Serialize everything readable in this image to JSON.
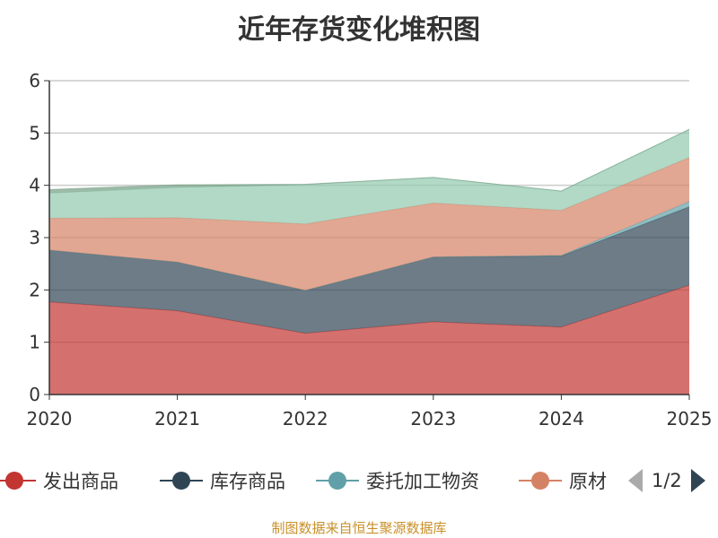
{
  "chart_data": {
    "type": "area",
    "stacked": true,
    "title": "近年存货变化堆积图",
    "categories": [
      "2020",
      "2021",
      "2022",
      "2023",
      "2024",
      "2025"
    ],
    "ylim": [
      0,
      6
    ],
    "yticks": [
      "0",
      "1",
      "2",
      "3",
      "4",
      "5",
      "6"
    ],
    "grid": true,
    "legend_position": "bottom",
    "series": [
      {
        "name": "发出商品",
        "color": "#c23531",
        "values": [
          1.77,
          1.6,
          1.17,
          1.39,
          1.29,
          2.09
        ]
      },
      {
        "name": "库存商品",
        "color": "#2f4554",
        "values": [
          0.99,
          0.93,
          0.82,
          1.24,
          1.36,
          1.5
        ]
      },
      {
        "name": "委托加工物资",
        "color": "#61a0a8",
        "values": [
          0,
          0,
          0,
          0,
          0.01,
          0.1
        ]
      },
      {
        "name": "原材料",
        "color": "#d48265",
        "values": [
          0.61,
          0.85,
          1.27,
          1.03,
          0.86,
          0.84
        ]
      },
      {
        "color": "#91c7ae",
        "values": [
          0.48,
          0.58,
          0.75,
          0.49,
          0.37,
          0.54
        ]
      },
      {
        "color": "#749f83",
        "values": [
          0.07,
          0.05,
          0.01,
          0,
          0,
          0
        ]
      }
    ]
  },
  "legend": {
    "items": [
      "发出商品",
      "库存商品",
      "委托加工物资",
      "原材"
    ],
    "page": "1/2"
  },
  "source": "制图数据来自恒生聚源数据库"
}
